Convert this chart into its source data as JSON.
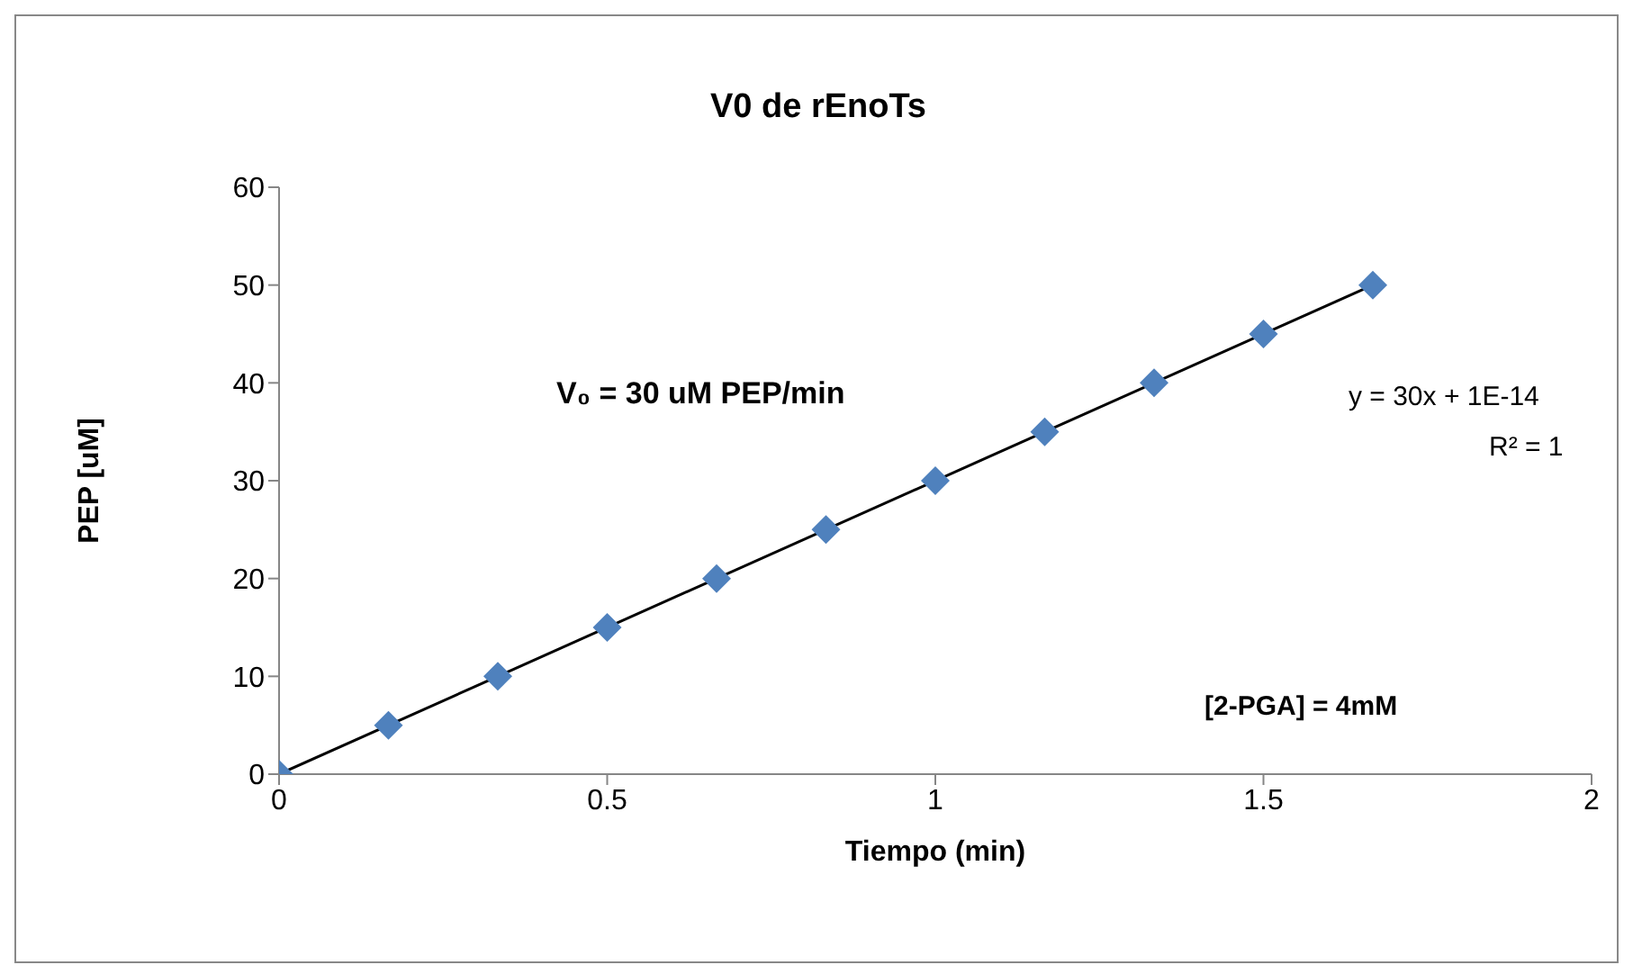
{
  "chart_data": {
    "type": "scatter",
    "title": "V0 de rEnoTs",
    "xlabel": "Tiempo (min)",
    "ylabel": "PEP [uM]",
    "xlim": [
      0,
      2
    ],
    "xticks": [
      0,
      0.5,
      1,
      1.5,
      2
    ],
    "ylim": [
      0,
      60
    ],
    "yticks": [
      0,
      10,
      20,
      30,
      40,
      50,
      60
    ],
    "marker": "diamond",
    "series": [
      {
        "color": "#4f81bd",
        "x": [
          0,
          0.1667,
          0.3333,
          0.5,
          0.6667,
          0.8333,
          1,
          1.1667,
          1.3333,
          1.5,
          1.6667
        ],
        "values": [
          0,
          5,
          10,
          15,
          20,
          25,
          30,
          35,
          40,
          45,
          50
        ]
      },
      {
        "type": "line",
        "marker": "none",
        "color": "#000000",
        "x": [
          0,
          1.6667
        ],
        "values": [
          0,
          50
        ]
      }
    ],
    "annotations": [
      "V₀ = 30 uM PEP/min",
      "y = 30x + 1E-14",
      "R² = 1",
      "[2-PGA] = 4mM"
    ]
  }
}
